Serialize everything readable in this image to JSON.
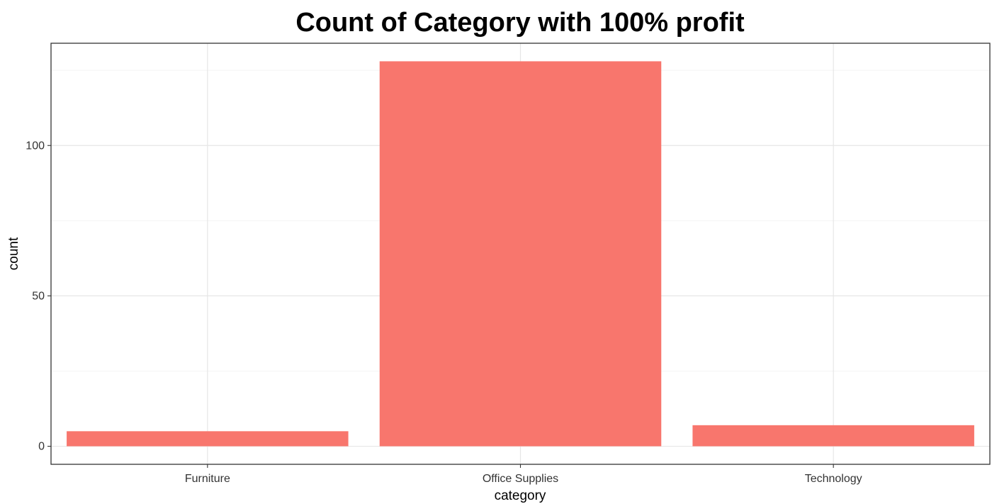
{
  "chart_data": {
    "type": "bar",
    "title": "Count of Category with 100% profit",
    "xlabel": "category",
    "ylabel": "count",
    "categories": [
      "Furniture",
      "Office Supplies",
      "Technology"
    ],
    "values": [
      5,
      128,
      7
    ],
    "ylim": [
      -6,
      134
    ],
    "yticks": [
      0,
      50,
      100
    ],
    "grid": true,
    "legend": "none",
    "bar_color": "#F8766D"
  }
}
